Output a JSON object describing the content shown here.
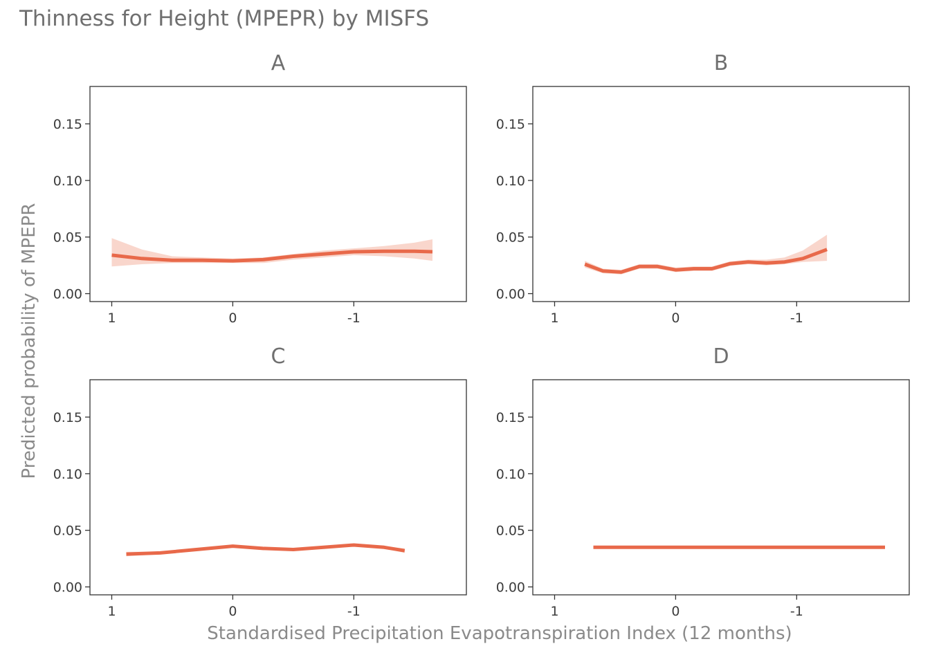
{
  "title": "Thinness for Height (MPEPR) by MISFS",
  "xlabel": "Standardised Precipitation Evapotranspiration Index (12 months)",
  "ylabel": "Predicted probability of MPEPR",
  "colors": {
    "line": "#E8694A",
    "ribbon": "#F4B4A3"
  },
  "chart_data": {
    "type": "line",
    "title": "Thinness for Height (MPEPR) by MISFS",
    "xlabel": "Standardised Precipitation Evapotranspiration Index (12 months)",
    "ylabel": "Predicted probability of MPEPR",
    "x_reversed": true,
    "xlim": [
      1.18,
      -1.93
    ],
    "ylim": [
      -0.007,
      0.183
    ],
    "x_ticks": [
      1,
      0,
      -1
    ],
    "x_tick_labels": [
      "1",
      "0",
      "-1"
    ],
    "y_ticks": [
      0,
      0.05,
      0.1,
      0.15
    ],
    "y_tick_labels": [
      "0.00",
      "0.05",
      "0.10",
      "0.15"
    ],
    "grid": false,
    "panels": [
      {
        "label": "A",
        "x": [
          1.0,
          0.75,
          0.5,
          0.25,
          0.0,
          -0.25,
          -0.5,
          -0.75,
          -1.0,
          -1.25,
          -1.5,
          -1.65
        ],
        "y": [
          0.034,
          0.031,
          0.0295,
          0.0295,
          0.029,
          0.03,
          0.033,
          0.035,
          0.037,
          0.0375,
          0.0375,
          0.037
        ],
        "lower": [
          0.024,
          0.026,
          0.027,
          0.027,
          0.027,
          0.027,
          0.03,
          0.032,
          0.034,
          0.033,
          0.031,
          0.029
        ],
        "upper": [
          0.049,
          0.039,
          0.033,
          0.032,
          0.031,
          0.032,
          0.035,
          0.038,
          0.04,
          0.042,
          0.045,
          0.048
        ]
      },
      {
        "label": "B",
        "x": [
          0.75,
          0.6,
          0.45,
          0.3,
          0.15,
          0.0,
          -0.15,
          -0.3,
          -0.45,
          -0.6,
          -0.75,
          -0.9,
          -1.05,
          -1.25
        ],
        "y": [
          0.026,
          0.02,
          0.019,
          0.024,
          0.024,
          0.021,
          0.022,
          0.022,
          0.0265,
          0.028,
          0.027,
          0.028,
          0.031,
          0.039
        ],
        "lower": [
          0.023,
          0.018,
          0.017,
          0.022,
          0.022,
          0.019,
          0.02,
          0.02,
          0.0245,
          0.026,
          0.025,
          0.026,
          0.028,
          0.029
        ],
        "upper": [
          0.029,
          0.022,
          0.021,
          0.026,
          0.026,
          0.023,
          0.024,
          0.024,
          0.0285,
          0.03,
          0.03,
          0.032,
          0.038,
          0.052
        ]
      },
      {
        "label": "C",
        "x": [
          0.88,
          0.6,
          0.3,
          0.0,
          -0.25,
          -0.5,
          -0.75,
          -1.0,
          -1.25,
          -1.42
        ],
        "y": [
          0.029,
          0.03,
          0.033,
          0.036,
          0.034,
          0.033,
          0.035,
          0.037,
          0.035,
          0.032
        ],
        "lower": [
          0.027,
          0.029,
          0.032,
          0.035,
          0.033,
          0.032,
          0.034,
          0.036,
          0.034,
          0.03
        ],
        "upper": [
          0.031,
          0.031,
          0.034,
          0.037,
          0.035,
          0.034,
          0.036,
          0.038,
          0.036,
          0.034
        ]
      },
      {
        "label": "D",
        "x": [
          0.68,
          -1.73
        ],
        "y": [
          0.035,
          0.035
        ],
        "lower": [
          0.034,
          0.034
        ],
        "upper": [
          0.036,
          0.036
        ]
      }
    ]
  }
}
